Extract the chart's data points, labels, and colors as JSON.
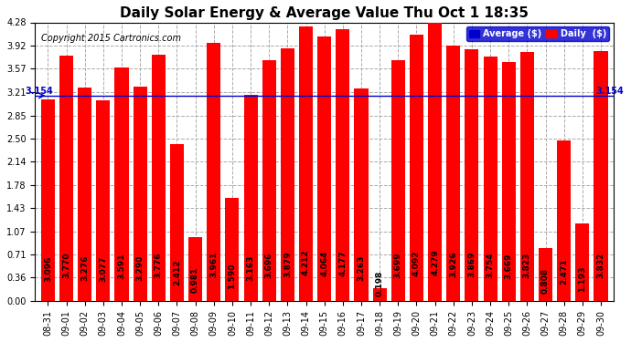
{
  "title": "Daily Solar Energy & Average Value Thu Oct 1 18:35",
  "copyright": "Copyright 2015 Cartronics.com",
  "categories": [
    "08-31",
    "09-01",
    "09-02",
    "09-03",
    "09-04",
    "09-05",
    "09-06",
    "09-07",
    "09-08",
    "09-09",
    "09-10",
    "09-11",
    "09-12",
    "09-13",
    "09-14",
    "09-15",
    "09-16",
    "09-17",
    "09-18",
    "09-19",
    "09-20",
    "09-21",
    "09-22",
    "09-23",
    "09-24",
    "09-25",
    "09-26",
    "09-27",
    "09-28",
    "09-29",
    "09-30"
  ],
  "values": [
    3.096,
    3.77,
    3.276,
    3.077,
    3.591,
    3.29,
    3.776,
    2.412,
    0.981,
    3.961,
    1.59,
    3.163,
    3.696,
    3.879,
    4.212,
    4.064,
    4.177,
    3.263,
    0.198,
    3.699,
    4.092,
    4.279,
    3.926,
    3.869,
    3.754,
    3.669,
    3.823,
    0.808,
    2.471,
    1.193,
    3.832
  ],
  "average": 3.154,
  "bar_color": "#ff0000",
  "avg_line_color": "#0000cd",
  "background_color": "#ffffff",
  "plot_bg_color": "#ffffff",
  "ylim": [
    0.0,
    4.28
  ],
  "yticks": [
    0.0,
    0.36,
    0.71,
    1.07,
    1.43,
    1.78,
    2.14,
    2.5,
    2.85,
    3.21,
    3.57,
    3.92,
    4.28
  ],
  "avg_label": "Average ($)",
  "daily_label": "Daily  ($)",
  "title_fontsize": 11,
  "tick_fontsize": 7,
  "bar_label_fontsize": 6.5,
  "copyright_fontsize": 7
}
